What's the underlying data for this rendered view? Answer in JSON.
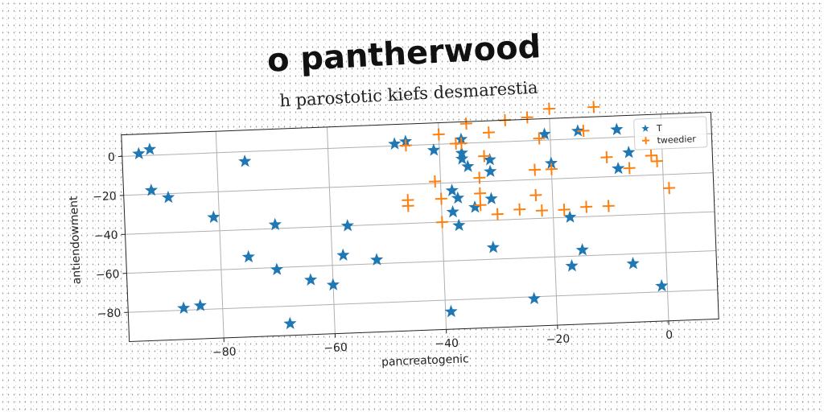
{
  "chart_data": {
    "type": "scatter",
    "title": "o pantherwood",
    "subtitle": "h parostotic kiefs desmarestia",
    "xlabel": "pancreatogenic",
    "ylabel": "antiendowment",
    "xlim": [
      -97,
      9
    ],
    "ylim": [
      -95,
      11
    ],
    "xticks": [
      -80,
      -60,
      -40,
      -20,
      0
    ],
    "yticks": [
      -80,
      -60,
      -40,
      -20,
      0
    ],
    "xtick_labels": [
      "−80",
      "−60",
      "−40",
      "−20",
      "0"
    ],
    "ytick_labels": [
      "−80",
      "−60",
      "−40",
      "−20",
      "0"
    ],
    "grid": true,
    "legend_position": "top-right",
    "series": [
      {
        "name": "T",
        "marker": "star",
        "color": "#1f77b4",
        "points": [
          [
            -94,
            1
          ],
          [
            -92,
            3
          ],
          [
            -92,
            -18
          ],
          [
            -89,
            -22
          ],
          [
            -81,
            -33
          ],
          [
            -75,
            -5
          ],
          [
            -70,
            -38
          ],
          [
            -64,
            -67
          ],
          [
            -57,
            -40
          ],
          [
            -75,
            -54
          ],
          [
            -70,
            -61
          ],
          [
            -58,
            -55
          ],
          [
            -87,
            -79
          ],
          [
            -84,
            -78
          ],
          [
            -60,
            -70
          ],
          [
            -68,
            -89
          ],
          [
            -52,
            -58
          ],
          [
            -48,
            1
          ],
          [
            -46,
            2
          ],
          [
            -41,
            -3
          ],
          [
            -36,
            2
          ],
          [
            -36,
            -5
          ],
          [
            -36,
            -8
          ],
          [
            -35,
            -12
          ],
          [
            -31,
            -9
          ],
          [
            -31,
            -15
          ],
          [
            -38,
            -24
          ],
          [
            -38,
            -35
          ],
          [
            -37,
            -42
          ],
          [
            -34,
            -33
          ],
          [
            -31,
            -29
          ],
          [
            -37,
            -28
          ],
          [
            -31,
            -54
          ],
          [
            -39,
            -86
          ],
          [
            -24,
            -81
          ],
          [
            -21,
            3
          ],
          [
            -20,
            -12
          ],
          [
            -17,
            -40
          ],
          [
            -17,
            -65
          ],
          [
            -15,
            -57
          ],
          [
            -15,
            4
          ],
          [
            -8,
            4
          ],
          [
            -6,
            -8
          ],
          [
            -8,
            -16
          ],
          [
            -6,
            -65
          ],
          [
            -1,
            -77
          ]
        ]
      },
      {
        "name": "tweedier",
        "marker": "plus",
        "color": "#ff7f0e",
        "points": [
          [
            -46,
            0
          ],
          [
            -46,
            -31
          ],
          [
            -46,
            -28
          ],
          [
            -40,
            5
          ],
          [
            -41,
            -19
          ],
          [
            -40,
            -40
          ],
          [
            -40,
            -28
          ],
          [
            -37,
            0
          ],
          [
            -36,
            0
          ],
          [
            -35,
            10
          ],
          [
            -33,
            -32
          ],
          [
            -33,
            -26
          ],
          [
            -33,
            -18
          ],
          [
            -32,
            -7
          ],
          [
            -31,
            5
          ],
          [
            -30,
            -37
          ],
          [
            -28,
            11
          ],
          [
            -26,
            -35
          ],
          [
            -24,
            12
          ],
          [
            -23,
            -15
          ],
          [
            -23,
            -28
          ],
          [
            -22,
            1
          ],
          [
            -22,
            -36
          ],
          [
            -20,
            16
          ],
          [
            -20,
            -15
          ],
          [
            -18,
            -36
          ],
          [
            -14,
            4
          ],
          [
            -14,
            -35
          ],
          [
            -12,
            16
          ],
          [
            -10,
            -10
          ],
          [
            -10,
            -35
          ],
          [
            -6,
            -16
          ],
          [
            -2,
            -10
          ],
          [
            -1,
            -13
          ],
          [
            1,
            -27
          ]
        ]
      }
    ]
  }
}
